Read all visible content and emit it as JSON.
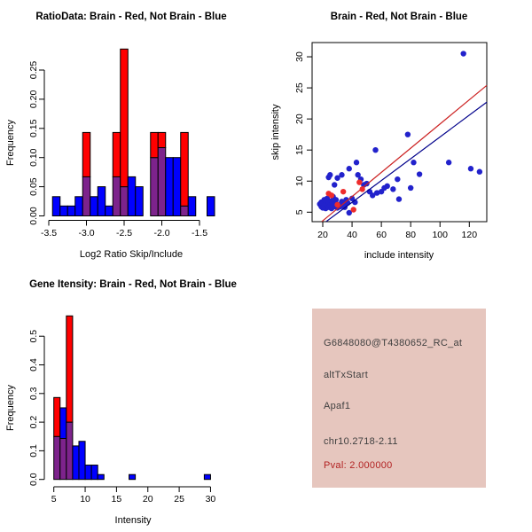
{
  "colors": {
    "hist_red": "#FF0000",
    "hist_blue": "#0000FF",
    "hist_overlap": "#7D238C",
    "point_blue": "#2222CC",
    "point_red": "#EE2C2C",
    "line_red": "#CC2222",
    "line_blue": "#00008B",
    "axis": "#000000"
  },
  "chart_data": [
    {
      "id": "ratio-hist",
      "type": "bar",
      "title": "RatioData: Brain - Red, Not Brain - Blue",
      "xlabel": "Log2 Ratio Skip/Include",
      "ylabel": "Frequency",
      "xlim": [
        -3.55,
        -1.25
      ],
      "ylim": [
        0,
        0.29
      ],
      "grid": false,
      "xticks": [
        -3.5,
        -3.0,
        -2.5,
        -2.0,
        -1.5
      ],
      "xtick_labels": [
        "-3.5",
        "-3.0",
        "-2.5",
        "-2.0",
        "-1.5"
      ],
      "yticks": [
        0,
        0.05,
        0.1,
        0.15,
        0.2,
        0.25
      ],
      "ytick_labels": [
        "0.00",
        "0.05",
        "0.10",
        "0.15",
        "0.20",
        "0.25"
      ],
      "bin_width": 0.1,
      "series_legend": [
        {
          "name": "Brain",
          "color": "red"
        },
        {
          "name": "Not Brain",
          "color": "blue"
        }
      ],
      "bars": [
        {
          "x": -3.4,
          "red": 0,
          "blue": 0.033
        },
        {
          "x": -3.3,
          "red": 0,
          "blue": 0.017
        },
        {
          "x": -3.2,
          "red": 0,
          "blue": 0.017
        },
        {
          "x": -3.1,
          "red": 0,
          "blue": 0.033
        },
        {
          "x": -3.0,
          "red": 0.143,
          "blue": 0.067
        },
        {
          "x": -2.9,
          "red": 0,
          "blue": 0.033
        },
        {
          "x": -2.8,
          "red": 0,
          "blue": 0.05
        },
        {
          "x": -2.7,
          "red": 0,
          "blue": 0.017
        },
        {
          "x": -2.6,
          "red": 0.143,
          "blue": 0.067
        },
        {
          "x": -2.5,
          "red": 0.286,
          "blue": 0.05
        },
        {
          "x": -2.4,
          "red": 0,
          "blue": 0.067
        },
        {
          "x": -2.3,
          "red": 0,
          "blue": 0.05
        },
        {
          "x": -2.1,
          "red": 0.143,
          "blue": 0.1
        },
        {
          "x": -2.0,
          "red": 0.143,
          "blue": 0.117
        },
        {
          "x": -1.9,
          "red": 0,
          "blue": 0.1
        },
        {
          "x": -1.8,
          "red": 0,
          "blue": 0.1
        },
        {
          "x": -1.7,
          "red": 0.143,
          "blue": 0.017
        },
        {
          "x": -1.6,
          "red": 0,
          "blue": 0.033
        },
        {
          "x": -1.35,
          "red": 0,
          "blue": 0.033
        }
      ]
    },
    {
      "id": "scatter",
      "type": "scatter",
      "title": "Brain - Red, Not Brain - Blue",
      "xlabel": "include intensity",
      "ylabel": "skip intensity",
      "xlim": [
        10,
        132
      ],
      "ylim": [
        3.5,
        32.3
      ],
      "grid": false,
      "xticks": [
        20,
        40,
        60,
        80,
        100,
        120
      ],
      "xtick_labels": [
        "20",
        "40",
        "60",
        "80",
        "100",
        "120"
      ],
      "yticks": [
        5,
        10,
        15,
        20,
        25,
        30
      ],
      "ytick_labels": [
        "5",
        "10",
        "15",
        "20",
        "25",
        "30"
      ],
      "blue_points": [
        [
          18,
          6.3
        ],
        [
          19,
          5.9
        ],
        [
          19,
          6.6
        ],
        [
          20,
          5.7
        ],
        [
          20,
          6.4
        ],
        [
          21,
          6.1
        ],
        [
          21,
          7.0
        ],
        [
          22,
          5.6
        ],
        [
          22,
          6.7
        ],
        [
          23,
          6.0
        ],
        [
          23,
          7.2
        ],
        [
          24,
          5.8
        ],
        [
          24,
          6.5
        ],
        [
          24,
          10.6
        ],
        [
          25,
          6.1
        ],
        [
          25,
          11.0
        ],
        [
          26,
          5.6
        ],
        [
          26,
          6.8
        ],
        [
          27,
          6.2
        ],
        [
          27,
          7.5
        ],
        [
          28,
          5.9
        ],
        [
          28,
          9.4
        ],
        [
          29,
          6.4
        ],
        [
          29,
          7.0
        ],
        [
          30,
          5.7
        ],
        [
          30,
          10.5
        ],
        [
          31,
          6.2
        ],
        [
          32,
          5.9
        ],
        [
          33,
          6.7
        ],
        [
          33,
          11.0
        ],
        [
          34,
          6.3
        ],
        [
          35,
          5.8
        ],
        [
          36,
          7.0
        ],
        [
          37,
          6.5
        ],
        [
          38,
          4.9
        ],
        [
          38,
          12.0
        ],
        [
          40,
          7.2
        ],
        [
          42,
          6.6
        ],
        [
          43,
          13.0
        ],
        [
          44,
          11.0
        ],
        [
          46,
          10.3
        ],
        [
          48,
          9.4
        ],
        [
          50,
          9.6
        ],
        [
          52,
          8.3
        ],
        [
          54,
          7.7
        ],
        [
          56,
          15.0
        ],
        [
          57,
          8.1
        ],
        [
          60,
          8.3
        ],
        [
          62,
          8.9
        ],
        [
          64,
          9.2
        ],
        [
          68,
          8.7
        ],
        [
          71,
          10.3
        ],
        [
          72,
          7.1
        ],
        [
          78,
          17.5
        ],
        [
          80,
          8.9
        ],
        [
          82,
          13.0
        ],
        [
          86,
          11.1
        ],
        [
          106,
          13.0
        ],
        [
          116,
          30.5
        ],
        [
          121,
          12.0
        ],
        [
          127,
          11.5
        ]
      ],
      "red_points": [
        [
          24,
          8.0
        ],
        [
          26,
          7.7
        ],
        [
          30,
          6.2
        ],
        [
          34,
          8.3
        ],
        [
          41,
          5.4
        ],
        [
          45,
          9.8
        ],
        [
          47,
          8.7
        ]
      ],
      "red_line": {
        "x1": 19.4,
        "y1": 3.5,
        "x2": 131.9,
        "y2": 25.4
      },
      "blue_line": {
        "x1": 22.4,
        "y1": 3.5,
        "x2": 131.9,
        "y2": 22.7
      }
    },
    {
      "id": "gene-hist",
      "type": "bar",
      "title": "Gene Itensity: Brain - Red, Not Brain - Blue",
      "xlabel": "Intensity",
      "ylabel": "Frequency",
      "xlim": [
        4,
        31.5
      ],
      "ylim": [
        0,
        0.58
      ],
      "grid": false,
      "xticks": [
        5,
        10,
        15,
        20,
        25,
        30
      ],
      "xtick_labels": [
        "5",
        "10",
        "15",
        "20",
        "25",
        "30"
      ],
      "yticks": [
        0,
        0.1,
        0.2,
        0.3,
        0.4,
        0.5
      ],
      "ytick_labels": [
        "0.0",
        "0.1",
        "0.2",
        "0.3",
        "0.4",
        "0.5"
      ],
      "bin_width": 1,
      "bars": [
        {
          "x": 5.5,
          "red": 0.286,
          "blue": 0.15
        },
        {
          "x": 6.5,
          "red": 0.143,
          "blue": 0.25
        },
        {
          "x": 7.5,
          "red": 0.571,
          "blue": 0.2
        },
        {
          "x": 8.5,
          "red": 0,
          "blue": 0.117
        },
        {
          "x": 9.5,
          "red": 0,
          "blue": 0.133
        },
        {
          "x": 10.5,
          "red": 0,
          "blue": 0.05
        },
        {
          "x": 11.5,
          "red": 0,
          "blue": 0.05
        },
        {
          "x": 12.5,
          "red": 0,
          "blue": 0.017
        },
        {
          "x": 17.5,
          "red": 0,
          "blue": 0.017
        },
        {
          "x": 29.5,
          "red": 0,
          "blue": 0.017
        }
      ]
    }
  ],
  "info_box": {
    "bg_color": "#E6C6BE",
    "text_color": "#404040",
    "pval_color": "#B22222",
    "lines": [
      "G6848080@T4380652_RC_at",
      "altTxStart",
      "Apaf1",
      "chr10.2718-2.11"
    ],
    "pval": "Pval: 2.000000"
  }
}
